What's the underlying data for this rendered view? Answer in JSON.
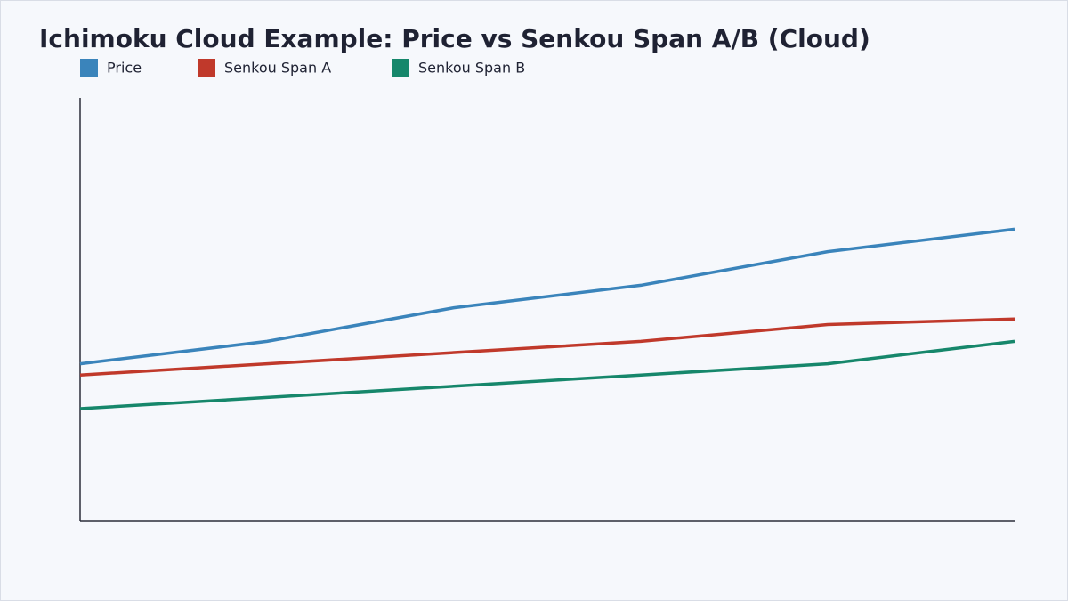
{
  "chart_data": {
    "type": "line",
    "title": "Ichimoku Cloud Example: Price vs Senkou Span A/B (Cloud)",
    "categories": [
      null,
      null,
      null,
      null,
      null,
      null
    ],
    "series": [
      {
        "name": "Price",
        "color": "#3a84bb",
        "values": [
          100,
          102,
          105,
          107,
          110,
          112
        ]
      },
      {
        "name": "Senkou Span A",
        "color": "#c0392b",
        "values": [
          99,
          100,
          101,
          102,
          103.5,
          104
        ]
      },
      {
        "name": "Senkou Span B",
        "color": "#16876b",
        "values": [
          96,
          97,
          98,
          99,
          100,
          102
        ]
      }
    ],
    "ylim": [
      86,
      123.7
    ],
    "grid": false,
    "legend": "top-left"
  }
}
